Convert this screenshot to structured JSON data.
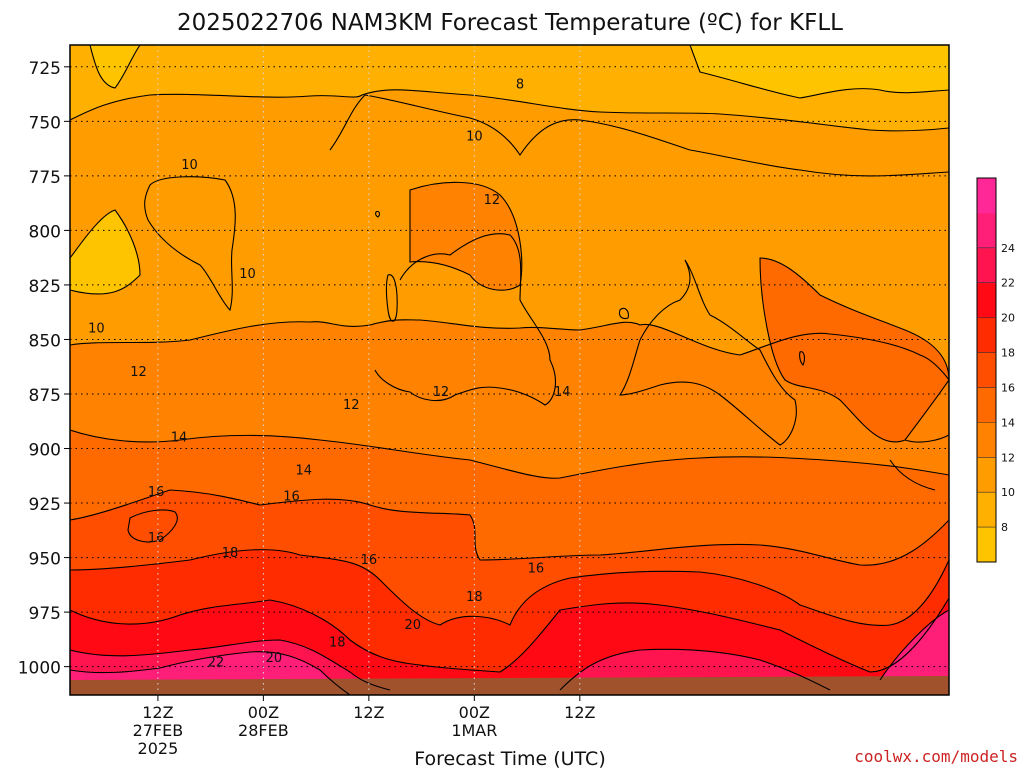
{
  "chart_data": {
    "type": "heatmap",
    "title": "2025022706 NAM3KM Forecast Temperature (ºC) for KFLL",
    "xlabel": "Forecast Time (UTC)",
    "ylabel": "",
    "credit": "coolwx.com/models",
    "y_axis": {
      "ticks": [
        "725",
        "750",
        "775",
        "800",
        "825",
        "850",
        "875",
        "900",
        "925",
        "950",
        "975",
        "1000"
      ],
      "range": [
        715,
        1013
      ],
      "reversed": true,
      "grid": true
    },
    "x_axis": {
      "range_hours": [
        7,
        57
      ],
      "ticks": [
        {
          "hour": 12,
          "line1": "12Z",
          "line2": "27FEB",
          "line3": "2025"
        },
        {
          "hour": 18,
          "line1": "00Z",
          "line2": "28FEB",
          "line3": ""
        },
        {
          "hour": 24,
          "line1": "12Z",
          "line2": "",
          "line3": ""
        },
        {
          "hour": 30,
          "line1": "00Z",
          "line2": "1MAR",
          "line3": ""
        },
        {
          "hour": 36,
          "line1": "12Z",
          "line2": "",
          "line3": ""
        }
      ],
      "grid": true
    },
    "colorbar": {
      "labels": [
        "8",
        "10",
        "12",
        "14",
        "16",
        "18",
        "20",
        "22",
        "24"
      ],
      "colors": [
        "#ffc400",
        "#ffb000",
        "#ff9c00",
        "#ff8200",
        "#ff6a00",
        "#ff4e00",
        "#ff2c00",
        "#ff0a14",
        "#ff1450",
        "#ff1e78",
        "#ff2896"
      ]
    },
    "contour_labels": [
      {
        "text": "8",
        "hour": 32.6,
        "p": 733
      },
      {
        "text": "10",
        "hour": 30.0,
        "p": 757
      },
      {
        "text": "12",
        "hour": 31.0,
        "p": 786
      },
      {
        "text": "10",
        "hour": 13.8,
        "p": 770
      },
      {
        "text": "10",
        "hour": 17.1,
        "p": 820
      },
      {
        "text": "10",
        "hour": 8.5,
        "p": 845
      },
      {
        "text": "12",
        "hour": 10.9,
        "p": 865
      },
      {
        "text": "12",
        "hour": 23.0,
        "p": 880
      },
      {
        "text": "12",
        "hour": 28.1,
        "p": 874
      },
      {
        "text": "14",
        "hour": 35.0,
        "p": 874
      },
      {
        "text": "14",
        "hour": 13.2,
        "p": 895
      },
      {
        "text": "14",
        "hour": 20.3,
        "p": 910
      },
      {
        "text": "16",
        "hour": 11.9,
        "p": 920
      },
      {
        "text": "16",
        "hour": 11.9,
        "p": 941
      },
      {
        "text": "16",
        "hour": 19.6,
        "p": 922
      },
      {
        "text": "16",
        "hour": 24.0,
        "p": 951
      },
      {
        "text": "16",
        "hour": 33.5,
        "p": 955
      },
      {
        "text": "18",
        "hour": 16.1,
        "p": 948
      },
      {
        "text": "18",
        "hour": 30.0,
        "p": 968
      },
      {
        "text": "18",
        "hour": 22.2,
        "p": 989
      },
      {
        "text": "20",
        "hour": 18.6,
        "p": 996
      },
      {
        "text": "20",
        "hour": 26.5,
        "p": 981
      },
      {
        "text": "22",
        "hour": 15.3,
        "p": 998
      }
    ]
  }
}
